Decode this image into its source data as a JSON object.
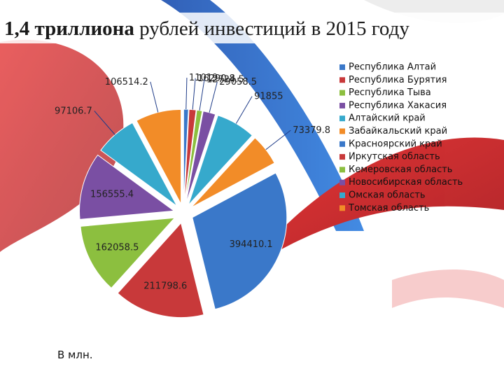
{
  "chart_data": {
    "type": "pie",
    "title": [
      "1,4 триллиона",
      "рублей инвестиций в 2015 году"
    ],
    "note": "В млн.",
    "categories": [
      "Республика Алтай",
      "Республика Бурятия",
      "Республика Тыва",
      "Республика Хакасия",
      "Алтайский край",
      "Забайкальский край",
      "Красноярский край",
      "Иркутская область",
      "Кемеровская область",
      "Новосибирская область",
      "Омская область",
      "Томская область"
    ],
    "values": [
      11019,
      16290.8,
      12724.5,
      29058.5,
      91855,
      73379.8,
      394410.1,
      211798.6,
      162058.5,
      156555.4,
      97106.7,
      106514.2
    ],
    "colors": [
      "#3a78c9",
      "#c8393a",
      "#8cbf3f",
      "#7a4fa3",
      "#36a9cc",
      "#f28c28",
      "#3a78c9",
      "#c8393a",
      "#8cbf3f",
      "#7a4fa3",
      "#36a9cc",
      "#f28c28"
    ],
    "legend": "right"
  }
}
